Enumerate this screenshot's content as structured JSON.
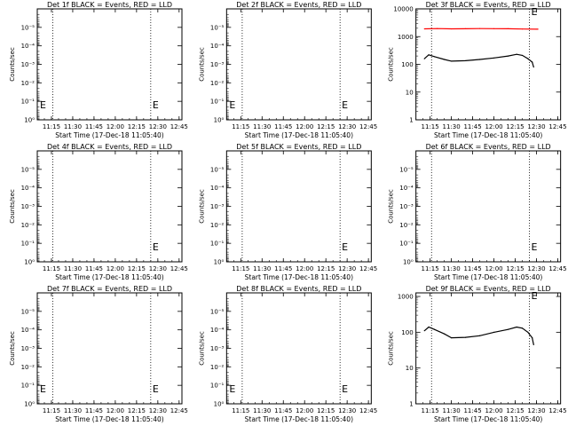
{
  "chart_data": [
    {
      "type": "line",
      "title": "Det 1f BLACK = Events, RED = LLD",
      "xlabel": "Start Time (17-Dec-18 11:05:40)",
      "ylabel": "Counts/sec",
      "x_ticks": [
        "11:15",
        "11:30",
        "11:45",
        "12:00",
        "12:15",
        "12:30",
        "12:45"
      ],
      "y_scale": "log",
      "y_ticks": [
        "10⁰",
        "10⁻¹",
        "10⁻²",
        "10⁻³",
        "10⁻⁴",
        "10⁻⁵"
      ],
      "ylim": [
        1,
        -5
      ],
      "markers": [
        "E",
        "E"
      ],
      "series": []
    },
    {
      "type": "line",
      "title": "Det 2f BLACK = Events, RED = LLD",
      "xlabel": "Start Time (17-Dec-18 11:05:40)",
      "ylabel": "Counts/sec",
      "x_ticks": [
        "11:15",
        "11:30",
        "11:45",
        "12:00",
        "12:15",
        "12:30",
        "12:45"
      ],
      "y_scale": "log",
      "y_ticks": [
        "10⁰",
        "10⁻¹",
        "10⁻²",
        "10⁻³",
        "10⁻⁴",
        "10⁻⁵"
      ],
      "ylim": [
        1,
        -5
      ],
      "markers": [
        "E",
        "E"
      ],
      "series": []
    },
    {
      "type": "line",
      "title": "Det 3f BLACK = Events, RED = LLD",
      "xlabel": "Start Time (17-Dec-18 11:05:40)",
      "ylabel": "Counts/sec",
      "x_ticks": [
        "11:15",
        "11:30",
        "11:45",
        "12:00",
        "12:15",
        "12:30",
        "12:45"
      ],
      "y_scale": "log",
      "y_ticks": [
        "1",
        "10",
        "100",
        "1000",
        "10000"
      ],
      "ylim": [
        0,
        4
      ],
      "markers": [
        "E"
      ],
      "series": [
        {
          "color": "#ff0000",
          "x": [
            "11:11",
            "11:20",
            "11:30",
            "11:40",
            "11:50",
            "12:00",
            "12:10",
            "12:20",
            "12:31"
          ],
          "values": [
            1900,
            1950,
            1900,
            1920,
            1950,
            1930,
            1920,
            1880,
            1850
          ]
        },
        {
          "color": "#000000",
          "x": [
            "11:11",
            "11:14",
            "11:18",
            "11:25",
            "11:30",
            "11:40",
            "11:50",
            "12:00",
            "12:10",
            "12:16",
            "12:20",
            "12:24",
            "12:27",
            "12:28"
          ],
          "values": [
            160,
            220,
            190,
            150,
            130,
            135,
            150,
            170,
            200,
            230,
            210,
            160,
            120,
            80
          ]
        }
      ]
    },
    {
      "type": "line",
      "title": "Det 4f BLACK = Events, RED = LLD",
      "xlabel": "Start Time (17-Dec-18 11:05:40)",
      "ylabel": "Counts/sec",
      "x_ticks": [
        "11:15",
        "11:30",
        "11:45",
        "12:00",
        "12:15",
        "12:30",
        "12:45"
      ],
      "y_scale": "log",
      "y_ticks": [
        "10⁰",
        "10⁻¹",
        "10⁻²",
        "10⁻³",
        "10⁻⁴",
        "10⁻⁵"
      ],
      "ylim": [
        1,
        -5
      ],
      "markers": [
        "E"
      ],
      "series": []
    },
    {
      "type": "line",
      "title": "Det 5f BLACK = Events, RED = LLD",
      "xlabel": "Start Time (17-Dec-18 11:05:40)",
      "ylabel": "Counts/sec",
      "x_ticks": [
        "11:15",
        "11:30",
        "11:45",
        "12:00",
        "12:15",
        "12:30",
        "12:45"
      ],
      "y_scale": "log",
      "y_ticks": [
        "10⁰",
        "10⁻¹",
        "10⁻²",
        "10⁻³",
        "10⁻⁴",
        "10⁻⁵"
      ],
      "ylim": [
        1,
        -5
      ],
      "markers": [
        "E"
      ],
      "series": []
    },
    {
      "type": "line",
      "title": "Det 6f BLACK = Events, RED = LLD",
      "xlabel": "Start Time (17-Dec-18 11:05:40)",
      "ylabel": "Counts/sec",
      "x_ticks": [
        "11:15",
        "11:30",
        "11:45",
        "12:00",
        "12:15",
        "12:30",
        "12:45"
      ],
      "y_scale": "log",
      "y_ticks": [
        "10⁰",
        "10⁻¹",
        "10⁻²",
        "10⁻³",
        "10⁻⁴",
        "10⁻⁵"
      ],
      "ylim": [
        1,
        -5
      ],
      "markers": [
        "E"
      ],
      "series": []
    },
    {
      "type": "line",
      "title": "Det 7f BLACK = Events, RED = LLD",
      "xlabel": "Start Time (17-Dec-18 11:05:40)",
      "ylabel": "Counts/sec",
      "x_ticks": [
        "11:15",
        "11:30",
        "11:45",
        "12:00",
        "12:15",
        "12:30",
        "12:45"
      ],
      "y_scale": "log",
      "y_ticks": [
        "10⁰",
        "10⁻¹",
        "10⁻²",
        "10⁻³",
        "10⁻⁴",
        "10⁻⁵"
      ],
      "ylim": [
        1,
        -5
      ],
      "markers": [
        "E",
        "E"
      ],
      "series": []
    },
    {
      "type": "line",
      "title": "Det 8f BLACK = Events, RED = LLD",
      "xlabel": "Start Time (17-Dec-18 11:05:40)",
      "ylabel": "Counts/sec",
      "x_ticks": [
        "11:15",
        "11:30",
        "11:45",
        "12:00",
        "12:15",
        "12:30",
        "12:45"
      ],
      "y_scale": "log",
      "y_ticks": [
        "10⁰",
        "10⁻¹",
        "10⁻²",
        "10⁻³",
        "10⁻⁴",
        "10⁻⁵"
      ],
      "ylim": [
        1,
        -5
      ],
      "markers": [
        "E",
        "E"
      ],
      "series": []
    },
    {
      "type": "line",
      "title": "Det 9f BLACK = Events, RED = LLD",
      "xlabel": "Start Time (17-Dec-18 11:05:40)",
      "ylabel": "Counts/sec",
      "x_ticks": [
        "11:15",
        "11:30",
        "11:45",
        "12:00",
        "12:15",
        "12:30",
        "12:45"
      ],
      "y_scale": "log",
      "y_ticks": [
        "1",
        "10",
        "100",
        "1000"
      ],
      "ylim": [
        0,
        3.1
      ],
      "markers": [
        "E"
      ],
      "series": [
        {
          "color": "#000000",
          "x": [
            "11:11",
            "11:14",
            "11:18",
            "11:25",
            "11:30",
            "11:40",
            "11:50",
            "12:00",
            "12:10",
            "12:16",
            "12:20",
            "12:24",
            "12:27",
            "12:28"
          ],
          "values": [
            110,
            140,
            120,
            90,
            70,
            72,
            80,
            100,
            120,
            140,
            130,
            100,
            70,
            45
          ]
        }
      ]
    }
  ]
}
